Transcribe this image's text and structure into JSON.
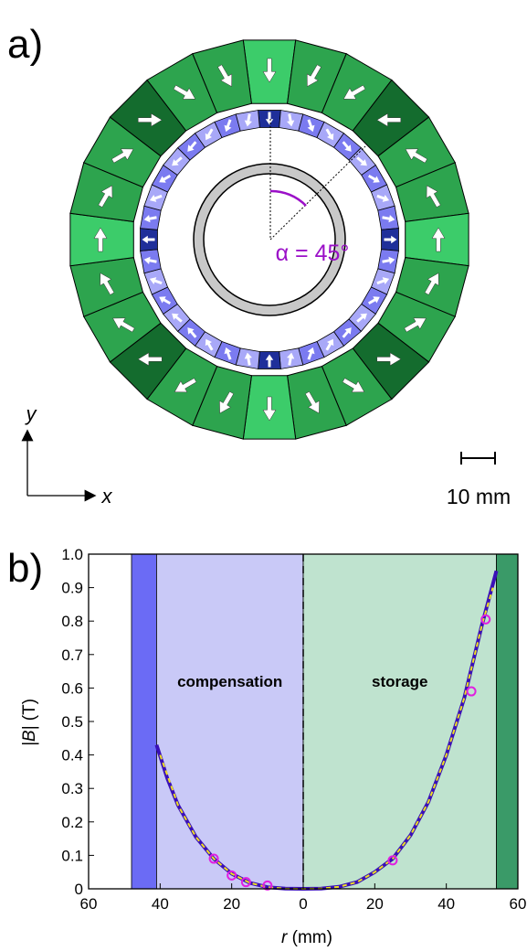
{
  "panel_a": {
    "label": "a)",
    "angle_annotation": "α = 45°",
    "axis_y": "y",
    "axis_x": "x",
    "scale_bar_label": "10 mm",
    "colors": {
      "outer_segment": "#2da44e",
      "outer_segment_dark": "#146c2e",
      "outer_segment_light": "#3ccc6a",
      "inner_ring": "#7b7bf0",
      "inner_ring_light": "#a8a8f8",
      "inner_ring_dark": "#1f2f9a",
      "bore": "#c8c8c8",
      "annotation": "#9b10c8"
    }
  },
  "panel_b": {
    "label": "b)",
    "chart_data": {
      "type": "line",
      "xlabel_italic": "r",
      "xlabel_unit": " (mm)",
      "ylabel_italic": "|B|",
      "ylabel_unit": " (T)",
      "x_ticks": [
        "60",
        "40",
        "20",
        "0",
        "20",
        "40",
        "60"
      ],
      "x_tick_values": [
        -60,
        -40,
        -20,
        0,
        20,
        40,
        60
      ],
      "y_ticks": [
        "0",
        "0.1",
        "0.2",
        "0.3",
        "0.4",
        "0.5",
        "0.6",
        "0.7",
        "0.8",
        "0.9",
        "1.0"
      ],
      "y_tick_values": [
        0,
        0.1,
        0.2,
        0.3,
        0.4,
        0.5,
        0.6,
        0.7,
        0.8,
        0.9,
        1.0
      ],
      "xlim": [
        -60,
        60
      ],
      "ylim": [
        0,
        1.0
      ],
      "regions": [
        {
          "label": "",
          "x": [
            -48,
            -41
          ],
          "color": "#6b6bf5"
        },
        {
          "label": "compensation",
          "x": [
            -41,
            0
          ],
          "color": "#c9c9f7"
        },
        {
          "label": "storage",
          "x": [
            0,
            54
          ],
          "color": "#bfe3cf"
        },
        {
          "label": "",
          "x": [
            54,
            60
          ],
          "color": "#3a9a68"
        }
      ],
      "series": [
        {
          "style": "solid",
          "color": "#3a10b8",
          "x": [
            -41,
            -38,
            -35,
            -30,
            -25,
            -20,
            -15,
            -10,
            -5,
            0,
            5,
            10,
            15,
            20,
            25,
            30,
            35,
            40,
            45,
            50,
            54
          ],
          "y": [
            0.43,
            0.33,
            0.25,
            0.155,
            0.09,
            0.045,
            0.018,
            0.005,
            0.0005,
            0,
            0.0007,
            0.006,
            0.02,
            0.05,
            0.09,
            0.16,
            0.26,
            0.4,
            0.57,
            0.79,
            0.95
          ]
        },
        {
          "style": "dashed",
          "color": "#f0e020",
          "x": [
            -40,
            -35,
            -30,
            -25,
            -20,
            -15,
            -10,
            -5,
            0,
            5,
            10,
            15,
            20,
            25,
            30,
            35,
            40,
            45,
            50,
            53
          ],
          "y": [
            0.4,
            0.25,
            0.155,
            0.09,
            0.045,
            0.018,
            0.005,
            0.0005,
            0,
            0.0007,
            0.006,
            0.02,
            0.05,
            0.09,
            0.16,
            0.26,
            0.4,
            0.57,
            0.79,
            0.9
          ]
        },
        {
          "style": "markers",
          "color": "#e020e0",
          "x": [
            -25,
            -20,
            -16,
            -10,
            25,
            47,
            51
          ],
          "y": [
            0.09,
            0.04,
            0.02,
            0.01,
            0.085,
            0.59,
            0.805
          ]
        }
      ],
      "divider_x": 0
    }
  }
}
